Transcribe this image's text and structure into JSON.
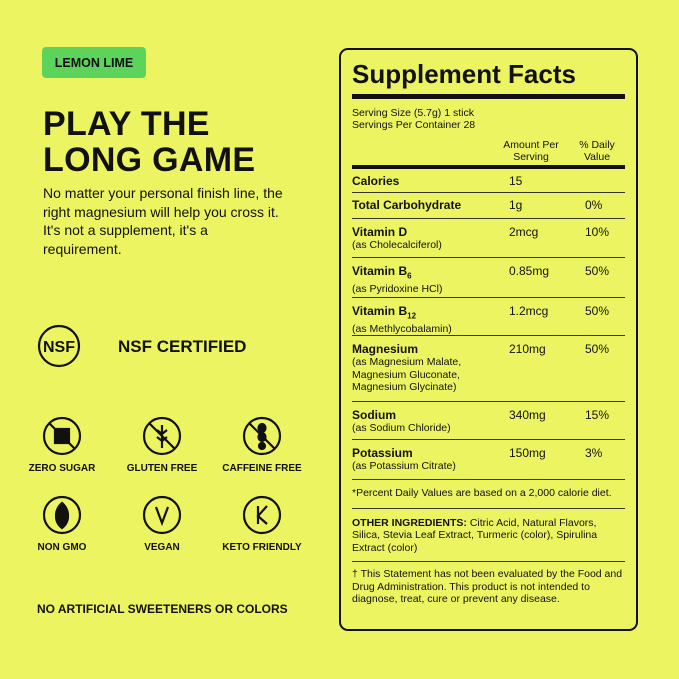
{
  "flavor_badge": "LEMON LIME",
  "headline": [
    "PLAY THE",
    "LONG GAME"
  ],
  "body": "No matter your personal finish line, the right magnesium will help you cross it. It's not a supplement, it's a requirement.",
  "certification": "NSF CERTIFIED",
  "icons": [
    "ZERO SUGAR",
    "GLUTEN FREE",
    "CAFFEINE FREE",
    "NON GMO",
    "VEGAN",
    "KETO FRIENDLY"
  ],
  "footer": "NO ARTIFICIAL SWEETENERS OR COLORS",
  "supplement_facts": {
    "title": "Supplement Facts",
    "serving_size": "Serving Size (5.7g) 1 stick",
    "servings_per_container": "Servings Per Container 28",
    "columns": [
      "Amount Per Serving",
      "% Daily Value"
    ],
    "rows": [
      {
        "name": "Calories",
        "amount": "15"
      },
      {
        "name": "Total Carbohydrate",
        "amount": "1g",
        "dv": "0%"
      },
      {
        "name": "Vitamin D",
        "note": "(as Cholecalciferol)",
        "amount": "2mcg",
        "dv": "10%"
      },
      {
        "name": "Vitamin B",
        "subscript": "6",
        "note": "(as Pyridoxine HCl)",
        "amount": "0.85mg",
        "dv": "50%"
      },
      {
        "name": "Vitamin B",
        "subscript": "12",
        "note": "(as Methlycobalamin)",
        "amount": "1.2mcg",
        "dv": "50%"
      },
      {
        "name": "Magnesium",
        "note": "(as Magnesium Malate, Magnesium Gluconate, Magnesium Glycinate)",
        "amount": "210mg",
        "dv": "50%"
      },
      {
        "name": "Sodium",
        "note": "(as Sodium Chloride)",
        "amount": "340mg",
        "dv": "15%"
      },
      {
        "name": "Potassium",
        "note": "(as Potassium Citrate)",
        "amount": "150mg",
        "dv": "3%"
      }
    ],
    "footnote": "*Percent Daily Values are based on a 2,000 calorie diet.",
    "ingredients_label": "OTHER INGREDIENTS:",
    "ingredients": "Citric Acid, Natural Flavors, Silica, Stevia Leaf Extract, Turmeric (color), Spirulina Extract (color)",
    "disclaimer": "† This Statement has not been evaluated by the Food and Drug Administration. This product is not intended to diagnose, treat, cure or prevent any disease."
  }
}
